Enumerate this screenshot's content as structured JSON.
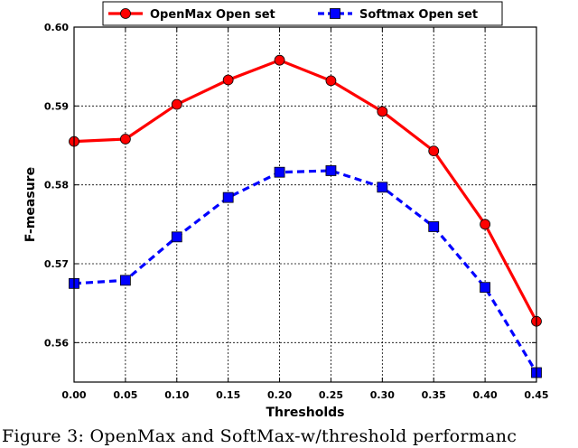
{
  "chart_data": {
    "type": "line",
    "xlabel": "Thresholds",
    "ylabel": "F-measure",
    "xlim": [
      0.0,
      0.45
    ],
    "ylim": [
      0.555,
      0.6
    ],
    "x": [
      0.0,
      0.05,
      0.1,
      0.15,
      0.2,
      0.25,
      0.3,
      0.35,
      0.4,
      0.45
    ],
    "x_ticks": [
      "0.00",
      "0.05",
      "0.10",
      "0.15",
      "0.20",
      "0.25",
      "0.30",
      "0.35",
      "0.40",
      "0.45"
    ],
    "y_ticks": [
      "0.56",
      "0.57",
      "0.58",
      "0.59",
      "0.60"
    ],
    "grid": true,
    "legend_position": "top-center",
    "series": [
      {
        "name": "OpenMax Open set",
        "color": "#ff0000",
        "marker": "circle",
        "line_style": "solid",
        "values": [
          0.5855,
          0.5858,
          0.5902,
          0.5933,
          0.5958,
          0.5932,
          0.5893,
          0.5843,
          0.575,
          0.5627
        ]
      },
      {
        "name": "Softmax Open set",
        "color": "#0000ff",
        "marker": "square",
        "line_style": "dashed",
        "values": [
          0.5675,
          0.5679,
          0.5734,
          0.5784,
          0.5816,
          0.5818,
          0.5797,
          0.5747,
          0.567,
          0.5562
        ]
      }
    ]
  },
  "caption": "Figure 3:  OpenMax and SoftMax-w/threshold performanc"
}
